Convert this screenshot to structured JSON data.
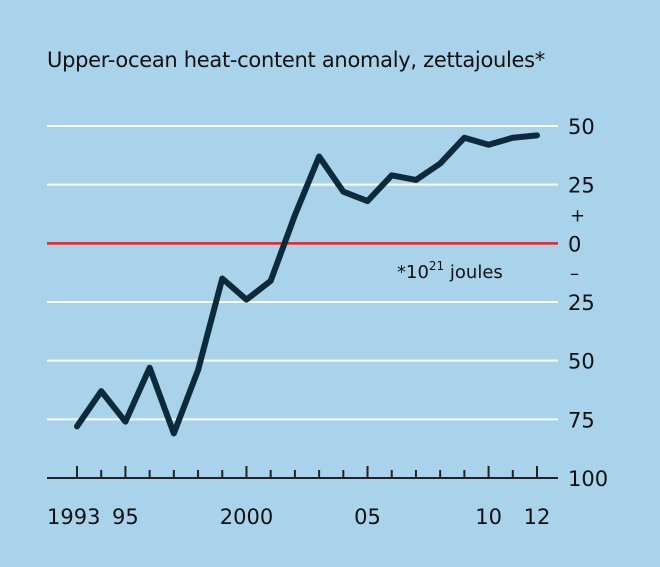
{
  "chart_data": {
    "type": "line",
    "title": "Upper-ocean heat-content anomaly, zettajoules*",
    "annotation": {
      "prefix": "*10",
      "superscript": "21",
      "suffix": " joules"
    },
    "positive_sign": "+",
    "negative_sign": "–",
    "x_tick_labels": [
      {
        "x": 1993,
        "label": "1993"
      },
      {
        "x": 1995,
        "label": "95"
      },
      {
        "x": 2000,
        "label": "2000"
      },
      {
        "x": 2005,
        "label": "05"
      },
      {
        "x": 2010,
        "label": "10"
      },
      {
        "x": 2012,
        "label": "12"
      }
    ],
    "y_ticks": [
      {
        "value": 50,
        "label": "50"
      },
      {
        "value": 25,
        "label": "25"
      },
      {
        "value": 0,
        "label": "0"
      },
      {
        "value": -25,
        "label": "25"
      },
      {
        "value": -50,
        "label": "50"
      },
      {
        "value": -75,
        "label": "75"
      },
      {
        "value": -100,
        "label": "100"
      }
    ],
    "xlim": [
      1993,
      2012
    ],
    "ylim": [
      -100,
      50
    ],
    "series": [
      {
        "x": [
          1993,
          1994,
          1995,
          1996,
          1997,
          1998,
          1999,
          2000,
          2001,
          2002,
          2003,
          2004,
          2005,
          2006,
          2007,
          2008,
          2009,
          2010,
          2011,
          2012
        ],
        "y": [
          -78,
          -63,
          -76,
          -53,
          -81,
          -54,
          -15,
          -24,
          -16,
          12,
          37,
          22,
          18,
          29,
          27,
          34,
          45,
          42,
          45,
          46
        ]
      }
    ],
    "colors": {
      "background": "#a9d3ea",
      "line": "#0d2a3a",
      "zero_line": "#e8212b",
      "grid": "#ffffff"
    }
  }
}
